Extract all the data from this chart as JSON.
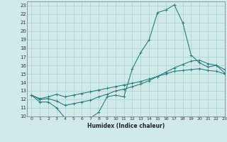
{
  "title": "",
  "xlabel": "Humidex (Indice chaleur)",
  "ylabel": "",
  "bg_color": "#d0eaea",
  "line_color": "#2d7d7d",
  "grid_color": "#b0d4d4",
  "xlim": [
    -0.5,
    23
  ],
  "ylim": [
    10,
    23.5
  ],
  "xticks": [
    0,
    1,
    2,
    3,
    4,
    5,
    6,
    7,
    8,
    9,
    10,
    11,
    12,
    13,
    14,
    15,
    16,
    17,
    18,
    19,
    20,
    21,
    22,
    23
  ],
  "yticks": [
    10,
    11,
    12,
    13,
    14,
    15,
    16,
    17,
    18,
    19,
    20,
    21,
    22,
    23
  ],
  "curve1_x": [
    0,
    1,
    2,
    3,
    4,
    5,
    6,
    7,
    8,
    9,
    10,
    11,
    12,
    13,
    14,
    15,
    16,
    17,
    18,
    19,
    20,
    21,
    22,
    23
  ],
  "curve1_y": [
    12.5,
    11.7,
    11.7,
    11.0,
    9.8,
    9.7,
    9.7,
    9.8,
    10.5,
    12.3,
    12.5,
    12.3,
    15.6,
    17.5,
    19.0,
    22.2,
    22.5,
    23.1,
    21.0,
    17.2,
    16.3,
    15.8,
    16.0,
    15.1
  ],
  "curve2_x": [
    0,
    1,
    2,
    3,
    4,
    5,
    6,
    7,
    8,
    9,
    10,
    11,
    12,
    13,
    14,
    15,
    16,
    17,
    18,
    19,
    20,
    21,
    22,
    23
  ],
  "curve2_y": [
    12.5,
    12.0,
    12.1,
    11.8,
    11.3,
    11.5,
    11.7,
    11.9,
    12.3,
    12.6,
    13.0,
    13.2,
    13.5,
    13.8,
    14.2,
    14.7,
    15.2,
    15.7,
    16.1,
    16.5,
    16.6,
    16.2,
    16.0,
    15.5
  ],
  "curve3_x": [
    0,
    1,
    2,
    3,
    4,
    5,
    6,
    7,
    8,
    9,
    10,
    11,
    12,
    13,
    14,
    15,
    16,
    17,
    18,
    19,
    20,
    21,
    22,
    23
  ],
  "curve3_y": [
    12.5,
    12.1,
    12.3,
    12.6,
    12.3,
    12.5,
    12.7,
    12.9,
    13.1,
    13.3,
    13.5,
    13.7,
    13.9,
    14.1,
    14.4,
    14.7,
    15.0,
    15.3,
    15.4,
    15.5,
    15.6,
    15.4,
    15.3,
    15.0
  ]
}
